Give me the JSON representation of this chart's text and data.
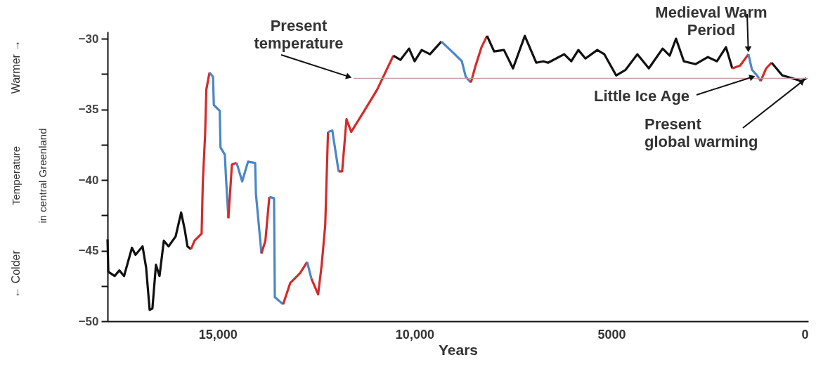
{
  "chart_data": {
    "type": "line",
    "xlabel": "Years",
    "ylabel": "Temperature\nin central Greenland",
    "xlim": [
      17800,
      0
    ],
    "xticks": [
      {
        "value": 15000,
        "label": "15,000"
      },
      {
        "value": 10000,
        "label": "10,000"
      },
      5000,
      0
    ],
    "ylim": [
      -50,
      -29.5
    ],
    "yticks": [
      -30,
      {
        "value": -32.5,
        "label": null
      },
      -35,
      {
        "value": -37.5,
        "label": null
      },
      -40,
      {
        "value": -42.5,
        "label": null
      },
      -45,
      {
        "value": -47.5,
        "label": null
      },
      -50
    ],
    "grid": false,
    "marker": "none",
    "line_style": "solid",
    "series": [
      {
        "color": "#111111",
        "x": [
          17800,
          17780,
          17620,
          17500,
          17380,
          17180,
          17090,
          16910,
          16820,
          16730,
          16660,
          16570,
          16480,
          16370,
          16250,
          16070,
          15930,
          15840,
          15770,
          15680
        ],
        "values": [
          -44.2,
          -46.5,
          -46.8,
          -46.4,
          -46.8,
          -44.8,
          -45.3,
          -44.7,
          -46.2,
          -49.2,
          -49.1,
          -46.0,
          -46.8,
          -44.3,
          -44.7,
          -44.0,
          -42.3,
          -43.5,
          -44.7,
          -44.9
        ]
      },
      {
        "color": "#d42a2a",
        "x": [
          15680,
          15590,
          15410,
          15380,
          15320,
          15290,
          15210
        ],
        "values": [
          -44.9,
          -44.3,
          -43.8,
          -40.2,
          -36.7,
          -33.6,
          -32.4
        ]
      },
      {
        "color": "#4a86c8",
        "x": [
          15210,
          15120,
          15100,
          14950,
          14930,
          14820,
          14790,
          14730
        ],
        "values": [
          -32.4,
          -32.7,
          -34.7,
          -35.1,
          -37.7,
          -38.2,
          -39.9,
          -42.7
        ]
      },
      {
        "color": "#d42a2a",
        "x": [
          14730,
          14640,
          14520
        ],
        "values": [
          -42.7,
          -38.9,
          -38.8
        ]
      },
      {
        "color": "#4a86c8",
        "x": [
          14520,
          14380,
          14230,
          14050,
          14030,
          13890
        ],
        "values": [
          -38.8,
          -40.1,
          -38.7,
          -38.8,
          -41.0,
          -45.2
        ]
      },
      {
        "color": "#d42a2a",
        "x": [
          13890,
          13790,
          13690
        ],
        "values": [
          -45.2,
          -44.3,
          -41.2
        ]
      },
      {
        "color": "#4a86c8",
        "x": [
          13690,
          13570,
          13550,
          13340
        ],
        "values": [
          -41.2,
          -41.3,
          -48.3,
          -48.8
        ]
      },
      {
        "color": "#d42a2a",
        "x": [
          13340,
          13160,
          12910,
          12730
        ],
        "values": [
          -48.8,
          -47.3,
          -46.6,
          -45.8
        ]
      },
      {
        "color": "#4a86c8",
        "x": [
          12730,
          12620
        ],
        "values": [
          -45.8,
          -47.0
        ]
      },
      {
        "color": "#d42a2a",
        "x": [
          12620,
          12450,
          12360,
          12270,
          12200
        ],
        "values": [
          -47.0,
          -48.1,
          -46.0,
          -43.2,
          -36.6
        ]
      },
      {
        "color": "#4a86c8",
        "x": [
          12200,
          12090,
          11930
        ],
        "values": [
          -36.6,
          -36.5,
          -39.4
        ]
      },
      {
        "color": "#d42a2a",
        "x": [
          11930,
          11840,
          11730,
          11610,
          11300,
          10950,
          10540
        ],
        "values": [
          -39.4,
          -39.4,
          -35.7,
          -36.6,
          -35.2,
          -33.6,
          -31.2
        ]
      },
      {
        "color": "#111111",
        "x": [
          10540,
          10360,
          10140,
          10000,
          9820,
          9610,
          9320
        ],
        "values": [
          -31.2,
          -31.5,
          -30.7,
          -31.6,
          -30.8,
          -31.1,
          -30.2
        ]
      },
      {
        "color": "#4a86c8",
        "x": [
          9320,
          8980,
          8800,
          8700,
          8570
        ],
        "values": [
          -30.2,
          -31.1,
          -31.6,
          -32.7,
          -33.1
        ]
      },
      {
        "color": "#d42a2a",
        "x": [
          8570,
          8450,
          8300,
          8160
        ],
        "values": [
          -33.1,
          -31.9,
          -30.6,
          -29.8
        ]
      },
      {
        "color": "#111111",
        "x": [
          8160,
          7980,
          7730,
          7500,
          7200,
          6910,
          6730,
          6610,
          6200,
          6020,
          5840,
          5660,
          5360,
          5180,
          4880,
          4640,
          4340,
          4050,
          3700,
          3520,
          3360,
          3160,
          2860,
          2550,
          2320,
          2090,
          1930
        ],
        "values": [
          -29.8,
          -30.9,
          -30.8,
          -32.1,
          -29.8,
          -31.7,
          -31.6,
          -31.7,
          -31.1,
          -31.6,
          -30.8,
          -31.4,
          -30.8,
          -31.1,
          -32.6,
          -32.2,
          -31.1,
          -32.1,
          -30.7,
          -31.2,
          -30.0,
          -31.6,
          -31.8,
          -31.3,
          -31.6,
          -30.6,
          -32.1
        ]
      },
      {
        "color": "#d42a2a",
        "x": [
          1930,
          1730,
          1520
        ],
        "values": [
          -32.1,
          -31.9,
          -31.1
        ]
      },
      {
        "color": "#4a86c8",
        "x": [
          1520,
          1430,
          1300,
          1210
        ],
        "values": [
          -31.1,
          -32.2,
          -32.6,
          -33.0
        ]
      },
      {
        "color": "#d42a2a",
        "x": [
          1210,
          1070,
          930
        ],
        "values": [
          -33.0,
          -32.1,
          -31.7
        ]
      },
      {
        "color": "#111111",
        "x": [
          930,
          660,
          410,
          180,
          50
        ],
        "values": [
          -31.7,
          -32.6,
          -32.8,
          -33.0,
          -32.8
        ]
      },
      {
        "color": "#c49a9a",
        "x": [
          11550,
          0
        ],
        "values": [
          -32.8,
          -32.8
        ]
      }
    ],
    "annotations": [
      {
        "text": "Present temperature",
        "x": 11550,
        "y": -32.8
      },
      {
        "text": "Medieval Warm Period",
        "x": 1520,
        "y": -31.1
      },
      {
        "text": "Little Ice Age",
        "x": 1300,
        "y": -32.6
      },
      {
        "text": "Present global warming",
        "x": 50,
        "y": -32.8
      },
      "Warmer →",
      "← Colder"
    ]
  }
}
